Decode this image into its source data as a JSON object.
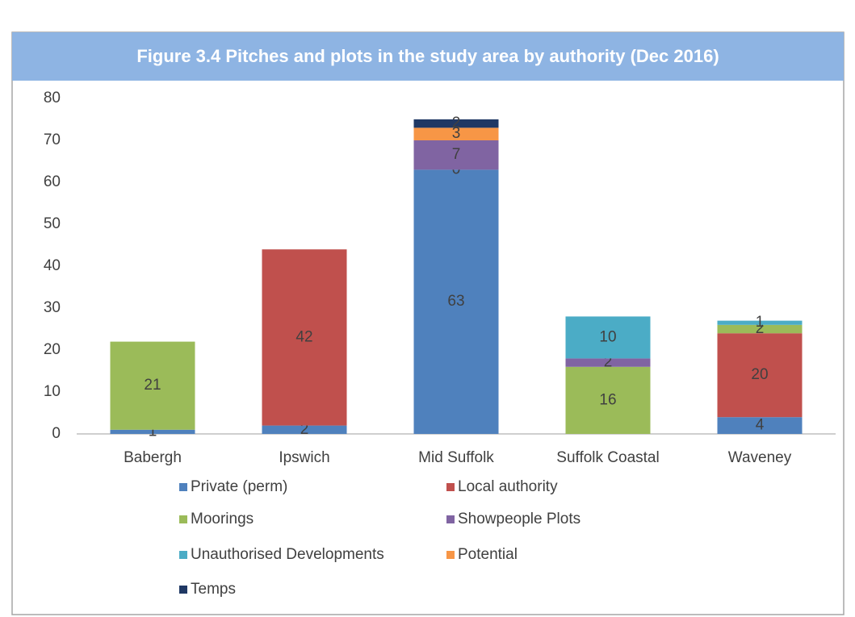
{
  "chart_data": {
    "type": "bar",
    "stacked": true,
    "title": "Figure 3.4 Pitches and plots in the study area by authority (Dec 2016)",
    "categories": [
      "Babergh",
      "Ipswich",
      "Mid Suffolk",
      "Suffolk Coastal",
      "Waveney"
    ],
    "series": [
      {
        "name": "Private (perm)",
        "color": "#4f81bd",
        "values": [
          1,
          2,
          63,
          null,
          4
        ]
      },
      {
        "name": "Local authority",
        "color": "#c0504d",
        "values": [
          null,
          42,
          0,
          null,
          20
        ]
      },
      {
        "name": "Moorings",
        "color": "#9bbb59",
        "values": [
          21,
          null,
          null,
          16,
          2
        ]
      },
      {
        "name": "Showpeople Plots",
        "color": "#8064a2",
        "values": [
          null,
          null,
          7,
          2,
          null
        ]
      },
      {
        "name": "Unauthorised Developments",
        "color": "#4bacc6",
        "values": [
          null,
          null,
          null,
          10,
          1
        ]
      },
      {
        "name": "Potential",
        "color": "#f79646",
        "values": [
          null,
          null,
          3,
          null,
          null
        ]
      },
      {
        "name": "Temps",
        "color": "#1f3864",
        "values": [
          null,
          null,
          2,
          null,
          null
        ]
      }
    ],
    "ylim": [
      0,
      80
    ],
    "yticks": [
      0,
      10,
      20,
      30,
      40,
      50,
      60,
      70,
      80
    ],
    "grid": false
  }
}
